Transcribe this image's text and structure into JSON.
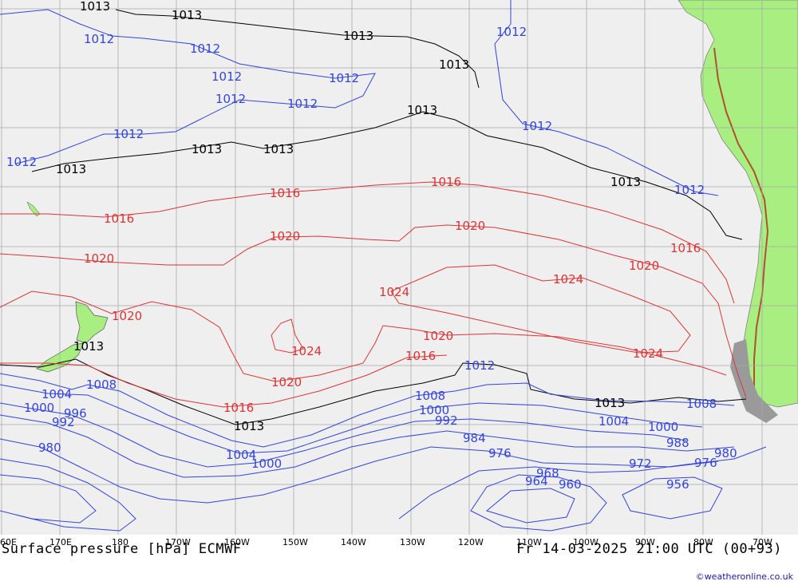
{
  "map": {
    "title": "Surface pressure [hPa] ECMWF",
    "valid_time": "Fr 14-03-2025 21:00 UTC (00+93)",
    "credit": "©weatheronline.co.uk",
    "colors": {
      "low": "#3344dd",
      "neutral": "#000000",
      "high": "#dd3333",
      "land": "#a8ee80",
      "sea": "#efefef"
    },
    "longitude_labels": [
      "60E",
      "170E",
      "180",
      "170W",
      "160W",
      "150W",
      "140W",
      "130W",
      "120W",
      "110W",
      "100W",
      "90W",
      "80W",
      "70W"
    ],
    "isobar_labels": [
      {
        "text": "1013",
        "kind": "neutral"
      },
      {
        "text": "1013",
        "kind": "neutral"
      },
      {
        "text": "1013",
        "kind": "neutral"
      },
      {
        "text": "1013",
        "kind": "neutral"
      },
      {
        "text": "1013",
        "kind": "neutral"
      },
      {
        "text": "1013",
        "kind": "neutral"
      },
      {
        "text": "1013",
        "kind": "neutral"
      },
      {
        "text": "1013",
        "kind": "neutral"
      },
      {
        "text": "1013",
        "kind": "neutral"
      },
      {
        "text": "1013",
        "kind": "neutral"
      },
      {
        "text": "1013",
        "kind": "neutral"
      },
      {
        "text": "1013",
        "kind": "neutral"
      },
      {
        "text": "1012",
        "kind": "low"
      },
      {
        "text": "1012",
        "kind": "low"
      },
      {
        "text": "1012",
        "kind": "low"
      },
      {
        "text": "1012",
        "kind": "low"
      },
      {
        "text": "1012",
        "kind": "low"
      },
      {
        "text": "1012",
        "kind": "low"
      },
      {
        "text": "1012",
        "kind": "low"
      },
      {
        "text": "1012",
        "kind": "low"
      },
      {
        "text": "1012",
        "kind": "low"
      },
      {
        "text": "1012",
        "kind": "low"
      },
      {
        "text": "1012",
        "kind": "low"
      },
      {
        "text": "1012",
        "kind": "low"
      },
      {
        "text": "1016",
        "kind": "high"
      },
      {
        "text": "1016",
        "kind": "high"
      },
      {
        "text": "1016",
        "kind": "high"
      },
      {
        "text": "1016",
        "kind": "high"
      },
      {
        "text": "1016",
        "kind": "high"
      },
      {
        "text": "1016",
        "kind": "high"
      },
      {
        "text": "1020",
        "kind": "high"
      },
      {
        "text": "1020",
        "kind": "high"
      },
      {
        "text": "1020",
        "kind": "high"
      },
      {
        "text": "1020",
        "kind": "high"
      },
      {
        "text": "1020",
        "kind": "high"
      },
      {
        "text": "1020",
        "kind": "high"
      },
      {
        "text": "1020",
        "kind": "high"
      },
      {
        "text": "1024",
        "kind": "high"
      },
      {
        "text": "1024",
        "kind": "high"
      },
      {
        "text": "1024",
        "kind": "high"
      },
      {
        "text": "1024",
        "kind": "high"
      },
      {
        "text": "1008",
        "kind": "low"
      },
      {
        "text": "1008",
        "kind": "low"
      },
      {
        "text": "1008",
        "kind": "low"
      },
      {
        "text": "1004",
        "kind": "low"
      },
      {
        "text": "1004",
        "kind": "low"
      },
      {
        "text": "1004",
        "kind": "low"
      },
      {
        "text": "1000",
        "kind": "low"
      },
      {
        "text": "1000",
        "kind": "low"
      },
      {
        "text": "1000",
        "kind": "low"
      },
      {
        "text": "1000",
        "kind": "low"
      },
      {
        "text": "996",
        "kind": "low"
      },
      {
        "text": "992",
        "kind": "low"
      },
      {
        "text": "992",
        "kind": "low"
      },
      {
        "text": "988",
        "kind": "low"
      },
      {
        "text": "984",
        "kind": "low"
      },
      {
        "text": "980",
        "kind": "low"
      },
      {
        "text": "980",
        "kind": "low"
      },
      {
        "text": "976",
        "kind": "low"
      },
      {
        "text": "976",
        "kind": "low"
      },
      {
        "text": "972",
        "kind": "low"
      },
      {
        "text": "968",
        "kind": "low"
      },
      {
        "text": "964",
        "kind": "low"
      },
      {
        "text": "960",
        "kind": "low"
      },
      {
        "text": "956",
        "kind": "low"
      }
    ]
  }
}
